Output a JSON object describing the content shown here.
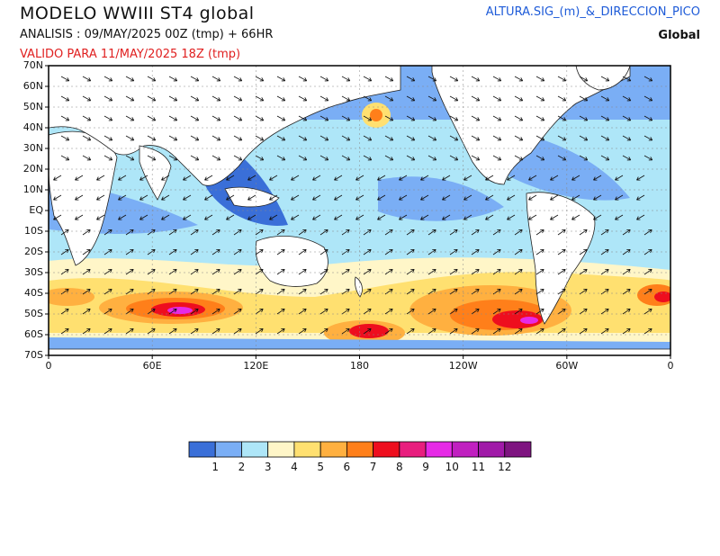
{
  "header": {
    "title": "MODELO WWIII ST4 global",
    "analysis": "ANALISIS : 09/MAY/2025 00Z  (tmp) + 66HR",
    "valid": "VALIDO PARA  11/MAY/2025 18Z  (tmp)",
    "product": "ALTURA.SIG_(m)_&_DIRECCION_PICO",
    "region": "Global"
  },
  "axes": {
    "lat_labels": [
      "70N",
      "60N",
      "50N",
      "40N",
      "30N",
      "20N",
      "10N",
      "EQ",
      "10S",
      "20S",
      "30S",
      "40S",
      "50S",
      "60S",
      "70S"
    ],
    "lon_labels": [
      "0",
      "60E",
      "120E",
      "180",
      "120W",
      "60W",
      "0"
    ]
  },
  "colorbar": {
    "labels": [
      "1",
      "2",
      "3",
      "4",
      "5",
      "6",
      "7",
      "8",
      "9",
      "10",
      "11",
      "12"
    ],
    "colors": [
      "#3a6fd8",
      "#7aaef5",
      "#aee6f8",
      "#fff6c8",
      "#ffe070",
      "#ffb040",
      "#ff7f1a",
      "#ee0e1e",
      "#e81e7e",
      "#e62ae6",
      "#c020c0",
      "#a01aa8",
      "#7e1480"
    ]
  },
  "map": {
    "land_color": "#ffffff",
    "grid": true
  }
}
